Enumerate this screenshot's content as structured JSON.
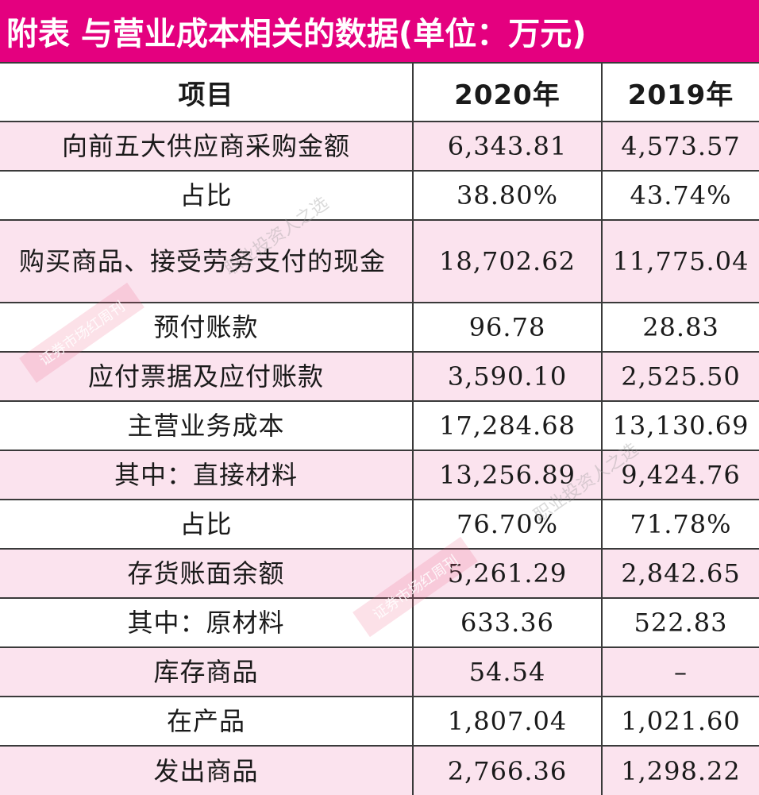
{
  "title": "附表  与营业成本相关的数据(单位：万元)",
  "headers": [
    "项目",
    "2020年",
    "2019年"
  ],
  "rows": [
    {
      "label": "向前五大供应商采购金额",
      "y2020": "6,343.81",
      "y2019": "4,573.57"
    },
    {
      "label": "占比",
      "y2020": "38.80%",
      "y2019": "43.74%"
    },
    {
      "label": "购买商品、接受劳务支付的现金",
      "y2020": "18,702.62",
      "y2019": "11,775.04"
    },
    {
      "label": "预付账款",
      "y2020": "96.78",
      "y2019": "28.83"
    },
    {
      "label": "应付票据及应付账款",
      "y2020": "3,590.10",
      "y2019": "2,525.50"
    },
    {
      "label": "主营业务成本",
      "y2020": "17,284.68",
      "y2019": "13,130.69"
    },
    {
      "label": "其中：直接材料",
      "y2020": "13,256.89",
      "y2019": "9,424.76"
    },
    {
      "label": "占比",
      "y2020": "76.70%",
      "y2019": "71.78%"
    },
    {
      "label": "存货账面余额",
      "y2020": "5,261.29",
      "y2019": "2,842.65"
    },
    {
      "label": "其中：原材料",
      "y2020": "633.36",
      "y2019": "522.83"
    },
    {
      "label": "库存商品",
      "y2020": "54.54",
      "y2019": "–"
    },
    {
      "label": "在产品",
      "y2020": "1,807.04",
      "y2019": "1,021.60"
    },
    {
      "label": "发出商品",
      "y2020": "2,766.36",
      "y2019": "1,298.22"
    }
  ],
  "watermarks": {
    "stamp": "证券市场红周刊",
    "text": "职业投资人之选"
  },
  "colors": {
    "title_bg": "#e4007f",
    "row_pink": "#fbe3ee",
    "row_white": "#ffffff"
  }
}
